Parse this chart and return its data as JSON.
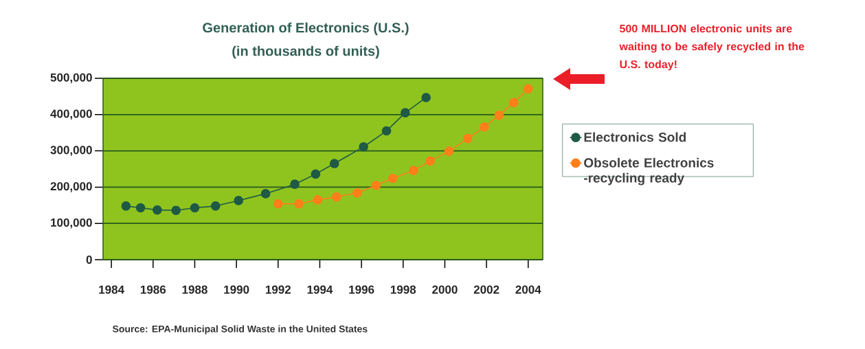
{
  "chart_data": {
    "type": "line",
    "title": "Generation of Electronics (U.S.)",
    "subtitle": "(in thousands of units)",
    "xlim": [
      1983.6,
      2004.7
    ],
    "xticks": [
      1984,
      1986,
      1988,
      1990,
      1992,
      1994,
      1996,
      1998,
      2000,
      2002,
      2004
    ],
    "ylim": [
      0,
      500000
    ],
    "yticks": [
      0,
      {
        "value": 100000,
        "label": "100,000"
      },
      {
        "value": 200000,
        "label": "200,000"
      },
      {
        "value": 300000,
        "label": "300,000"
      },
      {
        "value": 400000,
        "label": "400,000"
      },
      {
        "value": 500000,
        "label": "500,000"
      }
    ],
    "grid": "y",
    "legend": "right",
    "marker": "circle",
    "line_style": "solid",
    "series": [
      {
        "name": "Electronics Sold",
        "color": "#1f5a45",
        "x": [
          1984.7,
          1985.4,
          1986.2,
          1987.1,
          1988.0,
          1989.0,
          1990.1,
          1991.4,
          1992.8,
          1993.8,
          1994.7,
          1996.1,
          1997.2,
          1998.1,
          1999.1
        ],
        "values": [
          148000,
          143000,
          137000,
          136000,
          143000,
          148000,
          163000,
          182000,
          208000,
          236000,
          265000,
          311000,
          355000,
          405000,
          447000
        ]
      },
      {
        "name": "Obsolete Electronics -recycling ready",
        "color": "#ff7f1a",
        "x": [
          1992.0,
          1993.0,
          1993.9,
          1994.8,
          1995.8,
          1996.7,
          1997.5,
          1998.5,
          1999.3,
          2000.2,
          2001.1,
          2001.9,
          2002.6,
          2003.3,
          2004.0
        ],
        "values": [
          154000,
          154000,
          165000,
          173000,
          184000,
          205000,
          224000,
          246000,
          272000,
          299000,
          334000,
          366000,
          398000,
          433000,
          471000
        ]
      }
    ],
    "annotations": [
      "500 MILLION electronic units are waiting to be safely recycled in the U.S. today!",
      "Source: EPA-Municipal Solid Waste in the United States"
    ]
  }
}
